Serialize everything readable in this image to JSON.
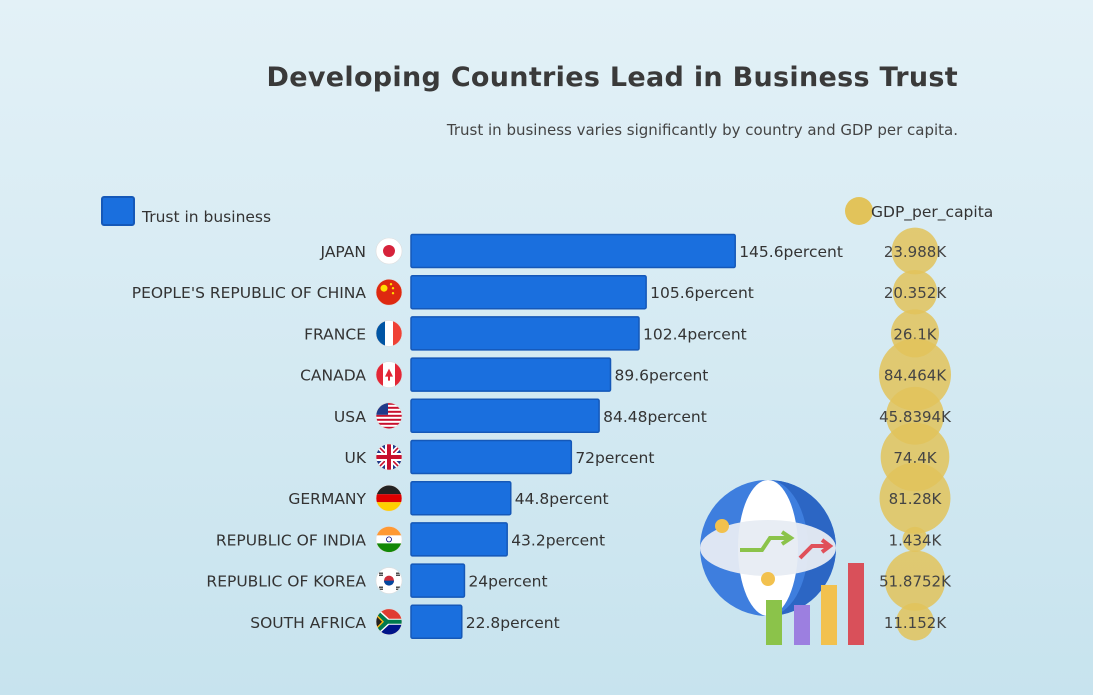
{
  "title": "Developing Countries Lead in Business Trust",
  "subtitle": "Trust in business varies significantly by country and GDP per capita.",
  "colors": {
    "bar": "#1a6fde",
    "bar_edge": "#1558b8",
    "bubble": "#e2c35a"
  },
  "chart_data": {
    "type": "bar",
    "orientation": "horizontal",
    "categories": [
      "JAPAN",
      "PEOPLE'S REPUBLIC OF CHINA",
      "FRANCE",
      "CANADA",
      "USA",
      "UK",
      "GERMANY",
      "REPUBLIC OF INDIA",
      "REPUBLIC OF KOREA",
      "SOUTH AFRICA"
    ],
    "flags": [
      "jp",
      "cn",
      "fr",
      "ca",
      "us",
      "uk",
      "de",
      "in",
      "kr",
      "za"
    ],
    "series": [
      {
        "name": "Trust in business",
        "values": [
          145.6,
          105.6,
          102.4,
          89.6,
          84.48,
          72,
          44.8,
          43.2,
          24,
          22.8
        ],
        "unit_suffix": "percent"
      },
      {
        "name": "GDP_per_capita",
        "values": [
          23.988,
          20.352,
          26.1,
          84.464,
          45.8394,
          74.4,
          81.28,
          1.434,
          51.8752,
          11.152
        ],
        "unit_suffix": "K",
        "display": [
          "23.988K",
          "20.352K",
          "26.1K",
          "84.464K",
          "45.8394K",
          "74.4K",
          "81.28K",
          "1.434K",
          "51.8752K",
          "11.152K"
        ]
      }
    ],
    "legend": [
      "Trust in business",
      "GDP_per_capita"
    ],
    "xlim": [
      0,
      150
    ]
  }
}
